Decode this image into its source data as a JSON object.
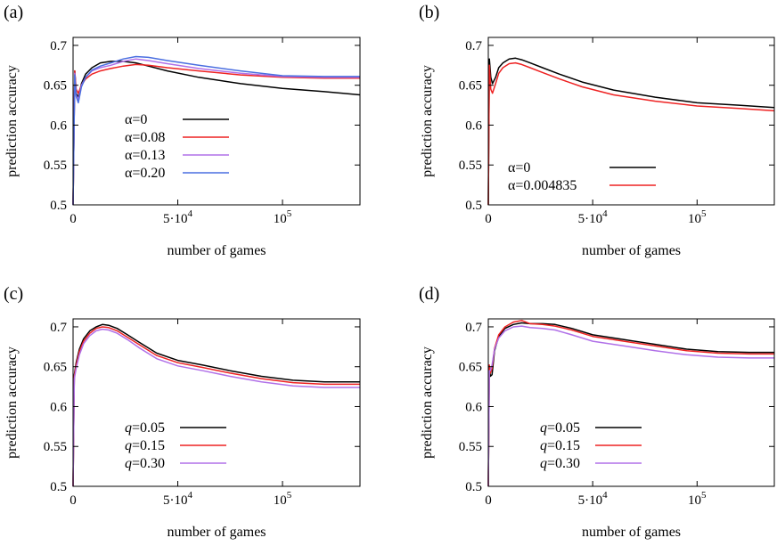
{
  "figure": {
    "panel_labels": [
      "(a)",
      "(b)",
      "(c)",
      "(d)"
    ]
  },
  "chart_data": [
    {
      "panel": "(a)",
      "type": "line",
      "xlabel": "number of games",
      "ylabel": "prediction accuracy",
      "xlim": [
        0,
        137000
      ],
      "ylim": [
        0.5,
        0.71
      ],
      "xticks": [
        {
          "value": 0,
          "label": "0"
        },
        {
          "value": 50000,
          "label": "5·10",
          "sup": "4"
        },
        {
          "value": 100000,
          "label": "10",
          "sup": "5"
        }
      ],
      "yticks": [
        {
          "value": 0.5,
          "label": "0.5"
        },
        {
          "value": 0.55,
          "label": "0.55"
        },
        {
          "value": 0.6,
          "label": "0.6"
        },
        {
          "value": 0.65,
          "label": "0.65"
        },
        {
          "value": 0.7,
          "label": "0.7"
        }
      ],
      "grid": false,
      "legend_position": "center-left",
      "series": [
        {
          "name": "α=0",
          "color": "#000000",
          "x": [
            0,
            800,
            1500,
            2500,
            4000,
            6000,
            9000,
            13000,
            18000,
            24000,
            30000,
            36000,
            45000,
            60000,
            80000,
            100000,
            120000,
            137000
          ],
          "y": [
            0.5,
            0.668,
            0.64,
            0.635,
            0.652,
            0.664,
            0.672,
            0.678,
            0.68,
            0.68,
            0.678,
            0.674,
            0.668,
            0.66,
            0.652,
            0.646,
            0.642,
            0.638
          ]
        },
        {
          "name": "α=0.08",
          "color": "#ee2222",
          "x": [
            0,
            800,
            1500,
            2500,
            4000,
            6000,
            9000,
            13000,
            18000,
            24000,
            30000,
            36000,
            45000,
            60000,
            80000,
            100000,
            120000,
            137000
          ],
          "y": [
            0.5,
            0.668,
            0.645,
            0.64,
            0.65,
            0.658,
            0.664,
            0.668,
            0.671,
            0.674,
            0.676,
            0.675,
            0.672,
            0.668,
            0.663,
            0.66,
            0.659,
            0.659
          ]
        },
        {
          "name": "α=0.13",
          "color": "#b070e8",
          "x": [
            0,
            800,
            1500,
            2500,
            4000,
            6000,
            9000,
            13000,
            18000,
            24000,
            30000,
            36000,
            45000,
            60000,
            80000,
            100000,
            120000,
            137000
          ],
          "y": [
            0.5,
            0.665,
            0.638,
            0.632,
            0.65,
            0.66,
            0.668,
            0.672,
            0.675,
            0.68,
            0.683,
            0.681,
            0.677,
            0.671,
            0.665,
            0.661,
            0.66,
            0.66
          ]
        },
        {
          "name": "α=0.20",
          "color": "#4a6ee0",
          "x": [
            0,
            800,
            1500,
            2500,
            4000,
            6000,
            9000,
            13000,
            18000,
            24000,
            30000,
            36000,
            45000,
            60000,
            80000,
            100000,
            120000,
            137000
          ],
          "y": [
            0.5,
            0.663,
            0.636,
            0.628,
            0.648,
            0.66,
            0.669,
            0.674,
            0.678,
            0.683,
            0.686,
            0.685,
            0.681,
            0.675,
            0.668,
            0.662,
            0.661,
            0.661
          ]
        }
      ]
    },
    {
      "panel": "(b)",
      "type": "line",
      "xlabel": "number of games",
      "ylabel": "prediction accuracy",
      "xlim": [
        0,
        137000
      ],
      "ylim": [
        0.5,
        0.71
      ],
      "xticks": [
        {
          "value": 0,
          "label": "0"
        },
        {
          "value": 50000,
          "label": "5·10",
          "sup": "4"
        },
        {
          "value": 100000,
          "label": "10",
          "sup": "5"
        }
      ],
      "yticks": [
        {
          "value": 0.5,
          "label": "0.5"
        },
        {
          "value": 0.55,
          "label": "0.55"
        },
        {
          "value": 0.6,
          "label": "0.6"
        },
        {
          "value": 0.65,
          "label": "0.65"
        },
        {
          "value": 0.7,
          "label": "0.7"
        }
      ],
      "grid": false,
      "legend_position": "bottom-center",
      "series": [
        {
          "name": "α=0",
          "color": "#000000",
          "x": [
            0,
            500,
            1200,
            2000,
            3500,
            5000,
            7000,
            10000,
            13000,
            16000,
            20000,
            26000,
            34000,
            45000,
            60000,
            80000,
            100000,
            120000,
            137000
          ],
          "y": [
            0.5,
            0.683,
            0.66,
            0.652,
            0.66,
            0.672,
            0.678,
            0.683,
            0.684,
            0.682,
            0.678,
            0.672,
            0.664,
            0.654,
            0.644,
            0.635,
            0.628,
            0.625,
            0.622
          ]
        },
        {
          "name": "α=0.004835",
          "color": "#ee2222",
          "x": [
            0,
            500,
            1200,
            2000,
            3500,
            5000,
            7000,
            10000,
            13000,
            16000,
            20000,
            26000,
            34000,
            45000,
            60000,
            80000,
            100000,
            120000,
            137000
          ],
          "y": [
            0.5,
            0.675,
            0.645,
            0.64,
            0.652,
            0.665,
            0.672,
            0.677,
            0.678,
            0.676,
            0.672,
            0.666,
            0.658,
            0.648,
            0.638,
            0.63,
            0.624,
            0.621,
            0.618
          ]
        }
      ]
    },
    {
      "panel": "(c)",
      "type": "line",
      "xlabel": "number of games",
      "ylabel": "prediction accuracy",
      "xlim": [
        0,
        137000
      ],
      "ylim": [
        0.5,
        0.71
      ],
      "xticks": [
        {
          "value": 0,
          "label": "0"
        },
        {
          "value": 50000,
          "label": "5·10",
          "sup": "4"
        },
        {
          "value": 100000,
          "label": "10",
          "sup": "5"
        }
      ],
      "yticks": [
        {
          "value": 0.5,
          "label": "0.5"
        },
        {
          "value": 0.55,
          "label": "0.55"
        },
        {
          "value": 0.6,
          "label": "0.6"
        },
        {
          "value": 0.65,
          "label": "0.65"
        },
        {
          "value": 0.7,
          "label": "0.7"
        }
      ],
      "grid": false,
      "legend_position": "bottom-center",
      "series": [
        {
          "name": "q=0.05",
          "color": "#000000",
          "x": [
            0,
            600,
            1500,
            3000,
            5000,
            8000,
            11000,
            14000,
            17000,
            21000,
            26000,
            32000,
            40000,
            50000,
            62000,
            75000,
            90000,
            105000,
            120000,
            137000
          ],
          "y": [
            0.5,
            0.64,
            0.655,
            0.672,
            0.685,
            0.695,
            0.7,
            0.703,
            0.702,
            0.698,
            0.69,
            0.68,
            0.667,
            0.658,
            0.652,
            0.645,
            0.638,
            0.633,
            0.631,
            0.631
          ]
        },
        {
          "name": "q=0.15",
          "color": "#ee2222",
          "x": [
            0,
            600,
            1500,
            3000,
            5000,
            8000,
            11000,
            14000,
            17000,
            21000,
            26000,
            32000,
            40000,
            50000,
            62000,
            75000,
            90000,
            105000,
            120000,
            137000
          ],
          "y": [
            0.5,
            0.638,
            0.652,
            0.669,
            0.682,
            0.692,
            0.698,
            0.7,
            0.699,
            0.695,
            0.687,
            0.677,
            0.664,
            0.655,
            0.649,
            0.642,
            0.635,
            0.63,
            0.628,
            0.628
          ]
        },
        {
          "name": "q=0.30",
          "color": "#b070e8",
          "x": [
            0,
            600,
            1500,
            3000,
            5000,
            8000,
            11000,
            14000,
            17000,
            21000,
            26000,
            32000,
            40000,
            50000,
            62000,
            75000,
            90000,
            105000,
            120000,
            137000
          ],
          "y": [
            0.5,
            0.635,
            0.648,
            0.665,
            0.679,
            0.689,
            0.695,
            0.697,
            0.696,
            0.692,
            0.684,
            0.673,
            0.66,
            0.651,
            0.645,
            0.638,
            0.631,
            0.626,
            0.624,
            0.624
          ]
        }
      ]
    },
    {
      "panel": "(d)",
      "type": "line",
      "xlabel": "number of games",
      "ylabel": "prediction accuracy",
      "xlim": [
        0,
        137000
      ],
      "ylim": [
        0.5,
        0.71
      ],
      "xticks": [
        {
          "value": 0,
          "label": "0"
        },
        {
          "value": 50000,
          "label": "5·10",
          "sup": "4"
        },
        {
          "value": 100000,
          "label": "10",
          "sup": "5"
        }
      ],
      "yticks": [
        {
          "value": 0.5,
          "label": "0.5"
        },
        {
          "value": 0.55,
          "label": "0.55"
        },
        {
          "value": 0.6,
          "label": "0.6"
        },
        {
          "value": 0.65,
          "label": "0.65"
        },
        {
          "value": 0.7,
          "label": "0.7"
        }
      ],
      "grid": false,
      "legend_position": "bottom-center",
      "series": [
        {
          "name": "q=0.05",
          "color": "#000000",
          "x": [
            0,
            500,
            1000,
            1800,
            3000,
            5000,
            8000,
            12000,
            16000,
            20000,
            26000,
            32000,
            40000,
            50000,
            65000,
            80000,
            95000,
            110000,
            125000,
            137000
          ],
          "y": [
            0.5,
            0.65,
            0.638,
            0.64,
            0.67,
            0.688,
            0.698,
            0.703,
            0.705,
            0.704,
            0.704,
            0.703,
            0.698,
            0.69,
            0.684,
            0.678,
            0.672,
            0.669,
            0.668,
            0.668
          ]
        },
        {
          "name": "q=0.15",
          "color": "#ee2222",
          "x": [
            0,
            500,
            1000,
            1800,
            3000,
            5000,
            8000,
            12000,
            16000,
            20000,
            26000,
            32000,
            40000,
            50000,
            65000,
            80000,
            95000,
            110000,
            125000,
            137000
          ],
          "y": [
            0.5,
            0.652,
            0.642,
            0.648,
            0.673,
            0.69,
            0.7,
            0.706,
            0.708,
            0.704,
            0.703,
            0.701,
            0.696,
            0.688,
            0.682,
            0.676,
            0.67,
            0.667,
            0.666,
            0.666
          ]
        },
        {
          "name": "q=0.30",
          "color": "#b070e8",
          "x": [
            0,
            500,
            1000,
            1800,
            3000,
            5000,
            8000,
            12000,
            16000,
            20000,
            26000,
            32000,
            40000,
            50000,
            65000,
            80000,
            95000,
            110000,
            125000,
            137000
          ],
          "y": [
            0.5,
            0.645,
            0.645,
            0.652,
            0.672,
            0.686,
            0.695,
            0.7,
            0.701,
            0.699,
            0.698,
            0.696,
            0.69,
            0.682,
            0.676,
            0.67,
            0.665,
            0.662,
            0.661,
            0.661
          ]
        }
      ]
    }
  ]
}
